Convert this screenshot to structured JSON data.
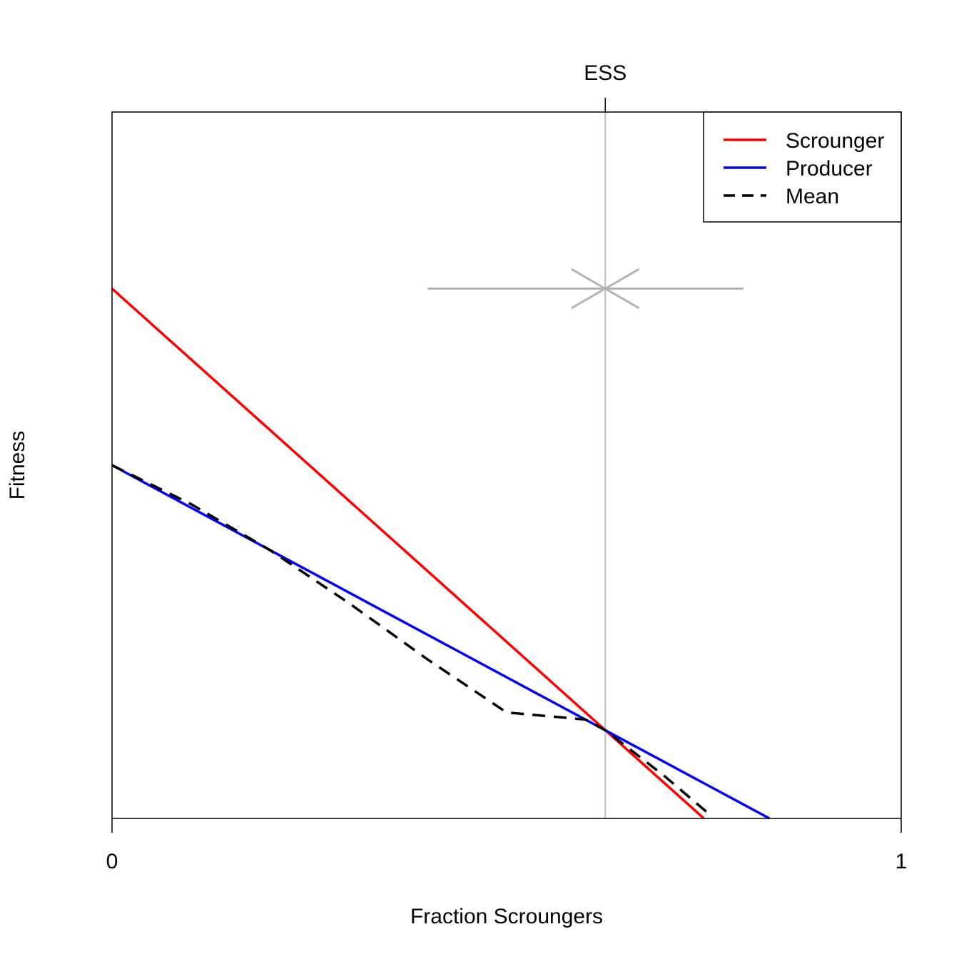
{
  "chart_data": {
    "type": "line",
    "xlabel": "Fraction Scroungers",
    "ylabel": "Fitness",
    "xlim": [
      0,
      1
    ],
    "ylim": [
      0,
      1
    ],
    "x_ticks": [
      {
        "value": 0,
        "label": "0"
      },
      {
        "value": 1,
        "label": "1"
      }
    ],
    "top_tick": {
      "value": 0.625,
      "label": "ESS"
    },
    "legend": {
      "position": "top-right",
      "entries": [
        {
          "label": "Scrounger",
          "color": "#ff0000",
          "style": "solid"
        },
        {
          "label": "Producer",
          "color": "#0000ff",
          "style": "solid"
        },
        {
          "label": "Mean",
          "color": "#000000",
          "style": "dashed"
        }
      ]
    },
    "series": [
      {
        "name": "Scrounger",
        "color": "#ff0000",
        "style": "solid",
        "x": [
          0,
          0.625,
          0.75
        ],
        "y": [
          0.75,
          0.125,
          0
        ]
      },
      {
        "name": "Producer",
        "color": "#0000ff",
        "style": "solid",
        "x": [
          0,
          0.833
        ],
        "y": [
          0.5,
          0
        ]
      },
      {
        "name": "Mean",
        "color": "#000000",
        "style": "dashed",
        "x": [
          0,
          0.1,
          0.2,
          0.3,
          0.4,
          0.5,
          0.6,
          0.625,
          0.7,
          0.76
        ],
        "y": [
          0.5,
          0.445,
          0.38,
          0.305,
          0.225,
          0.15,
          0.14,
          0.125,
          0.06,
          0.003
        ]
      }
    ],
    "annotations": [
      {
        "type": "vline",
        "x": 0.625,
        "color": "#bebebe"
      },
      {
        "type": "arrow",
        "from": [
          0.4,
          0.75
        ],
        "to": [
          0.625,
          0.75
        ],
        "color": "#b3b3b3"
      },
      {
        "type": "arrow",
        "from": [
          0.8,
          0.75
        ],
        "to": [
          0.625,
          0.75
        ],
        "color": "#b3b3b3"
      }
    ],
    "colors": {
      "ess_line": "#bebebe",
      "arrows": "#b3b3b3"
    }
  }
}
